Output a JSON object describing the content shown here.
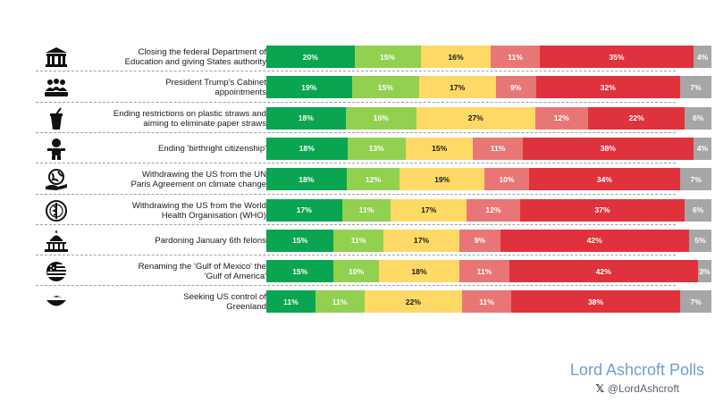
{
  "chart_data": {
    "type": "bar",
    "orientation": "horizontal",
    "stacked": true,
    "normalized": true,
    "categories": [
      "Closing the federal Department of Education and giving States authority",
      "President Trump's Cabinet appointments",
      "Ending restrictions on plastic straws and aiming to eliminate paper straws",
      "Ending 'birthright citizenship'",
      "Withdrawing the US from the UN Paris Agreement on climate change",
      "Withdrawing the US from the World Health Organisation (WHO)",
      "Pardoning January 6th felons",
      "Renaming the 'Gulf of Mexico' the 'Gulf of America'",
      "Seeking US control of Greenland"
    ],
    "category_lines": [
      [
        "Closing the federal Department of",
        "Education and giving States authority"
      ],
      [
        "President Trump's Cabinet",
        "appointments"
      ],
      [
        "Ending restrictions on plastic straws and",
        "aiming to eliminate paper straws"
      ],
      [
        "Ending 'birthright citizenship'"
      ],
      [
        "Withdrawing the US from the UN",
        "Paris Agreement on climate change"
      ],
      [
        "Withdrawing the US from the World",
        "Health Organisation (WHO)"
      ],
      [
        "Pardoning January 6th felons"
      ],
      [
        "Renaming the 'Gulf of Mexico' the",
        "'Gulf of America'"
      ],
      [
        "Seeking US control of",
        "Greenland"
      ]
    ],
    "icons": [
      "school-building-icon",
      "group-meeting-icon",
      "drink-cup-straw-icon",
      "baby-icon",
      "globe-hand-icon",
      "who-emblem-icon",
      "capitol-building-icon",
      "us-flag-icon",
      "greenland-shape-icon"
    ],
    "series": [
      {
        "color": "#0aa550",
        "text": "light",
        "values": [
          20,
          19,
          18,
          18,
          18,
          17,
          15,
          15,
          11
        ]
      },
      {
        "color": "#92d050",
        "text": "light",
        "values": [
          15,
          15,
          16,
          13,
          12,
          11,
          11,
          10,
          11
        ]
      },
      {
        "color": "#ffd966",
        "text": "dark",
        "values": [
          16,
          17,
          27,
          15,
          19,
          17,
          17,
          18,
          22
        ]
      },
      {
        "color": "#e97676",
        "text": "light",
        "values": [
          11,
          9,
          12,
          11,
          10,
          12,
          9,
          11,
          11
        ]
      },
      {
        "color": "#e0323c",
        "text": "light",
        "values": [
          35,
          32,
          22,
          38,
          34,
          37,
          42,
          42,
          38
        ]
      },
      {
        "color": "#a6a6a6",
        "text": "light",
        "values": [
          4,
          7,
          6,
          4,
          7,
          6,
          5,
          3,
          7
        ]
      }
    ],
    "value_suffix": "%",
    "grid": false,
    "legend": "none",
    "title": "",
    "xlabel": "",
    "ylabel": ""
  },
  "branding": {
    "name": "Lord Ashcroft Polls",
    "x_logo": "𝕏",
    "handle": "@LordAshcroft"
  }
}
